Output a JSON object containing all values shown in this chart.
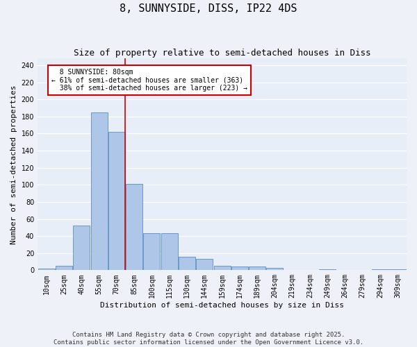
{
  "title": "8, SUNNYSIDE, DISS, IP22 4DS",
  "subtitle": "Size of property relative to semi-detached houses in Diss",
  "xlabel": "Distribution of semi-detached houses by size in Diss",
  "ylabel": "Number of semi-detached properties",
  "categories": [
    "10sqm",
    "25sqm",
    "40sqm",
    "55sqm",
    "70sqm",
    "85sqm",
    "100sqm",
    "115sqm",
    "130sqm",
    "144sqm",
    "159sqm",
    "174sqm",
    "189sqm",
    "204sqm",
    "219sqm",
    "234sqm",
    "249sqm",
    "264sqm",
    "279sqm",
    "294sqm",
    "309sqm"
  ],
  "values": [
    2,
    5,
    52,
    185,
    162,
    101,
    43,
    43,
    16,
    13,
    5,
    4,
    4,
    3,
    0,
    0,
    1,
    0,
    0,
    1,
    1
  ],
  "bar_color": "#aec6e8",
  "bar_edge_color": "#5a8fc2",
  "property_line_x": 4.5,
  "property_size": "80sqm",
  "property_name": "8 SUNNYSIDE",
  "pct_smaller": 61,
  "n_smaller": 363,
  "pct_larger": 38,
  "n_larger": 223,
  "line_color": "#cc0000",
  "annotation_box_color": "#cc0000",
  "ylim": [
    0,
    248
  ],
  "yticks": [
    0,
    20,
    40,
    60,
    80,
    100,
    120,
    140,
    160,
    180,
    200,
    220,
    240
  ],
  "background_color": "#e8eef8",
  "grid_color": "#ffffff",
  "footer": "Contains HM Land Registry data © Crown copyright and database right 2025.\nContains public sector information licensed under the Open Government Licence v3.0.",
  "title_fontsize": 11,
  "subtitle_fontsize": 9,
  "axis_label_fontsize": 8,
  "tick_fontsize": 7,
  "footer_fontsize": 6.5,
  "annotation_fontsize": 7
}
